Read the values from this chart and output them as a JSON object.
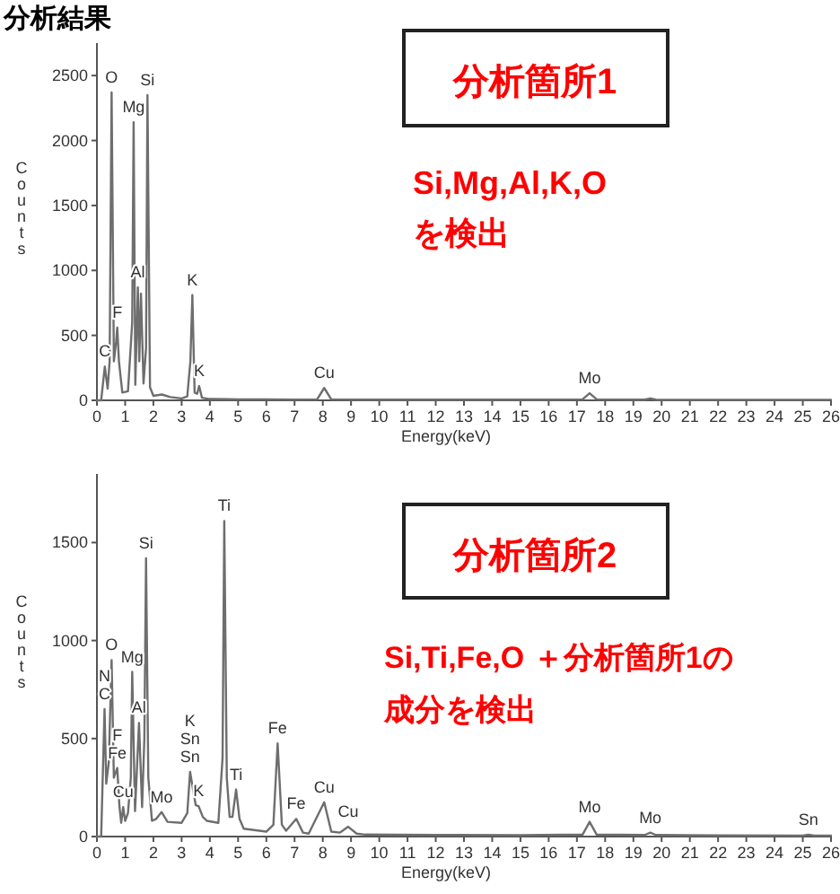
{
  "chart_data": [
    {
      "type": "line",
      "title": "分析結果",
      "xlabel": "Energy(keV)",
      "ylabel": "Counts",
      "xlim": [
        0,
        26
      ],
      "ylim": [
        0,
        2750
      ],
      "xticks": [
        0,
        1,
        2,
        3,
        4,
        5,
        6,
        7,
        8,
        9,
        10,
        11,
        12,
        13,
        14,
        15,
        16,
        17,
        18,
        19,
        20,
        21,
        22,
        23,
        24,
        25,
        26
      ],
      "yticks": [
        0,
        500,
        1000,
        1500,
        2000,
        2500
      ],
      "series": [
        {
          "color": "#6e6e6e",
          "x": [
            0,
            0.15,
            0.28,
            0.38,
            0.45,
            0.52,
            0.6,
            0.68,
            0.72,
            0.78,
            0.9,
            1.1,
            1.25,
            1.3,
            1.36,
            1.45,
            1.5,
            1.56,
            1.65,
            1.74,
            1.79,
            1.88,
            2.0,
            2.3,
            2.6,
            3.0,
            3.2,
            3.31,
            3.38,
            3.46,
            3.55,
            3.62,
            3.72,
            4.0,
            5,
            6,
            7,
            7.8,
            8.05,
            8.3,
            9,
            10,
            12,
            14,
            16,
            17.2,
            17.45,
            17.7,
            19.4,
            19.6,
            19.8,
            22,
            24,
            26
          ],
          "values": [
            0,
            0,
            260,
            90,
            300,
            2370,
            300,
            450,
            560,
            300,
            60,
            70,
            600,
            2140,
            120,
            870,
            300,
            820,
            130,
            400,
            2350,
            100,
            35,
            45,
            25,
            15,
            30,
            300,
            810,
            60,
            50,
            110,
            20,
            10,
            8,
            8,
            6,
            8,
            95,
            8,
            6,
            5,
            5,
            5,
            5,
            8,
            55,
            8,
            5,
            15,
            5,
            4,
            4,
            4
          ]
        }
      ],
      "annotations": [
        "分析箇所1",
        "Si,Mg,Al,K,O",
        "を検出",
        {
          "text": "C",
          "x": 0.28,
          "y": 260
        },
        {
          "text": "O",
          "x": 0.52,
          "y": 2370
        },
        {
          "text": "Mg",
          "x": 1.3,
          "y": 2140
        },
        {
          "text": "Si",
          "x": 1.79,
          "y": 2350
        },
        {
          "text": "F",
          "x": 0.72,
          "y": 560
        },
        {
          "text": "Al",
          "x": 1.45,
          "y": 870
        },
        {
          "text": "K",
          "x": 3.38,
          "y": 810
        },
        {
          "text": "K",
          "x": 3.62,
          "y": 110
        },
        {
          "text": "Cu",
          "x": 8.05,
          "y": 95
        },
        {
          "text": "Mo",
          "x": 17.45,
          "y": 55
        }
      ]
    },
    {
      "type": "line",
      "xlabel": "Energy(keV)",
      "ylabel": "Counts",
      "xlim": [
        0,
        26
      ],
      "ylim": [
        0,
        1850
      ],
      "xticks": [
        0,
        1,
        2,
        3,
        4,
        5,
        6,
        7,
        8,
        9,
        10,
        11,
        12,
        13,
        14,
        15,
        16,
        17,
        18,
        19,
        20,
        21,
        22,
        23,
        24,
        25,
        26
      ],
      "yticks": [
        0,
        500,
        1000,
        1500
      ],
      "series": [
        {
          "color": "#6e6e6e",
          "x": [
            0,
            0.15,
            0.27,
            0.33,
            0.42,
            0.52,
            0.6,
            0.72,
            0.8,
            0.86,
            0.93,
            1.0,
            1.1,
            1.2,
            1.25,
            1.35,
            1.49,
            1.6,
            1.68,
            1.74,
            1.82,
            1.95,
            2.1,
            2.29,
            2.5,
            3.0,
            3.2,
            3.3,
            3.45,
            3.5,
            3.6,
            3.75,
            3.9,
            4.3,
            4.45,
            4.51,
            4.6,
            4.7,
            4.8,
            4.93,
            5.05,
            5.2,
            6.0,
            6.25,
            6.4,
            6.55,
            6.7,
            7.06,
            7.3,
            7.5,
            8.05,
            8.3,
            8.6,
            8.9,
            9.2,
            9.5,
            12,
            15,
            17.2,
            17.45,
            17.7,
            19.4,
            19.6,
            19.8,
            22,
            25.0,
            25.2,
            25.4,
            26
          ],
          "values": [
            0,
            0,
            650,
            270,
            380,
            900,
            300,
            350,
            150,
            70,
            150,
            80,
            120,
            300,
            840,
            130,
            580,
            150,
            500,
            1420,
            300,
            80,
            90,
            125,
            75,
            70,
            120,
            330,
            200,
            160,
            155,
            100,
            80,
            70,
            400,
            1610,
            300,
            100,
            100,
            240,
            90,
            40,
            25,
            60,
            475,
            60,
            30,
            90,
            20,
            15,
            175,
            25,
            20,
            50,
            15,
            10,
            8,
            7,
            10,
            75,
            10,
            8,
            20,
            8,
            6,
            5,
            10,
            5,
            5
          ]
        }
      ],
      "annotations": [
        "分析箇所2",
        "Si,Ti,Fe,O ＋分析箇所1の",
        "成分を検出",
        {
          "text": "C",
          "x": 0.27,
          "y": 650
        },
        {
          "text": "N",
          "x": 0.27,
          "y": 650
        },
        {
          "text": "O",
          "x": 0.52,
          "y": 900
        },
        {
          "text": "Mg",
          "x": 1.25,
          "y": 840
        },
        {
          "text": "Si",
          "x": 1.74,
          "y": 1420
        },
        {
          "text": "Al",
          "x": 1.49,
          "y": 580
        },
        {
          "text": "Fe",
          "x": 0.72,
          "y": 350
        },
        {
          "text": "F",
          "x": 0.72,
          "y": 350
        },
        {
          "text": "Cu",
          "x": 0.93,
          "y": 150
        },
        {
          "text": "Mo",
          "x": 2.29,
          "y": 125
        },
        {
          "text": "Sn",
          "x": 3.3,
          "y": 330
        },
        {
          "text": "Sn",
          "x": 3.3,
          "y": 330
        },
        {
          "text": "K",
          "x": 3.3,
          "y": 330
        },
        {
          "text": "K",
          "x": 3.6,
          "y": 155
        },
        {
          "text": "Ti",
          "x": 4.51,
          "y": 1610
        },
        {
          "text": "Ti",
          "x": 4.93,
          "y": 240
        },
        {
          "text": "Fe",
          "x": 6.4,
          "y": 475
        },
        {
          "text": "Fe",
          "x": 7.06,
          "y": 90
        },
        {
          "text": "Cu",
          "x": 8.05,
          "y": 175
        },
        {
          "text": "Cu",
          "x": 8.9,
          "y": 50
        },
        {
          "text": "Mo",
          "x": 17.45,
          "y": 75
        },
        {
          "text": "Mo",
          "x": 19.6,
          "y": 20
        },
        {
          "text": "Sn",
          "x": 25.2,
          "y": 10
        }
      ]
    }
  ]
}
